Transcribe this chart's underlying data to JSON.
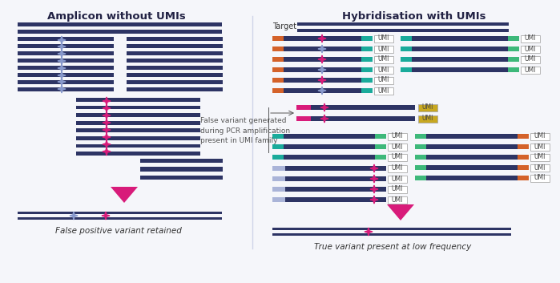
{
  "bg_color": "#f5f6fa",
  "dark_navy": "#2d3464",
  "pink": "#d81b7a",
  "blue_gray": "#8899cc",
  "orange": "#d4622a",
  "teal": "#1aab9b",
  "green": "#3db87a",
  "yellow_gold": "#c8a820",
  "lavender": "#aab4d8",
  "title_left": "Amplicon without UMIs",
  "title_right": "Hybridisation with UMIs",
  "label_left": "False positive variant retained",
  "label_right": "True variant present at low frequency",
  "annotation": "False variant generated\nduring PCR amplification\npresent in UMI family"
}
